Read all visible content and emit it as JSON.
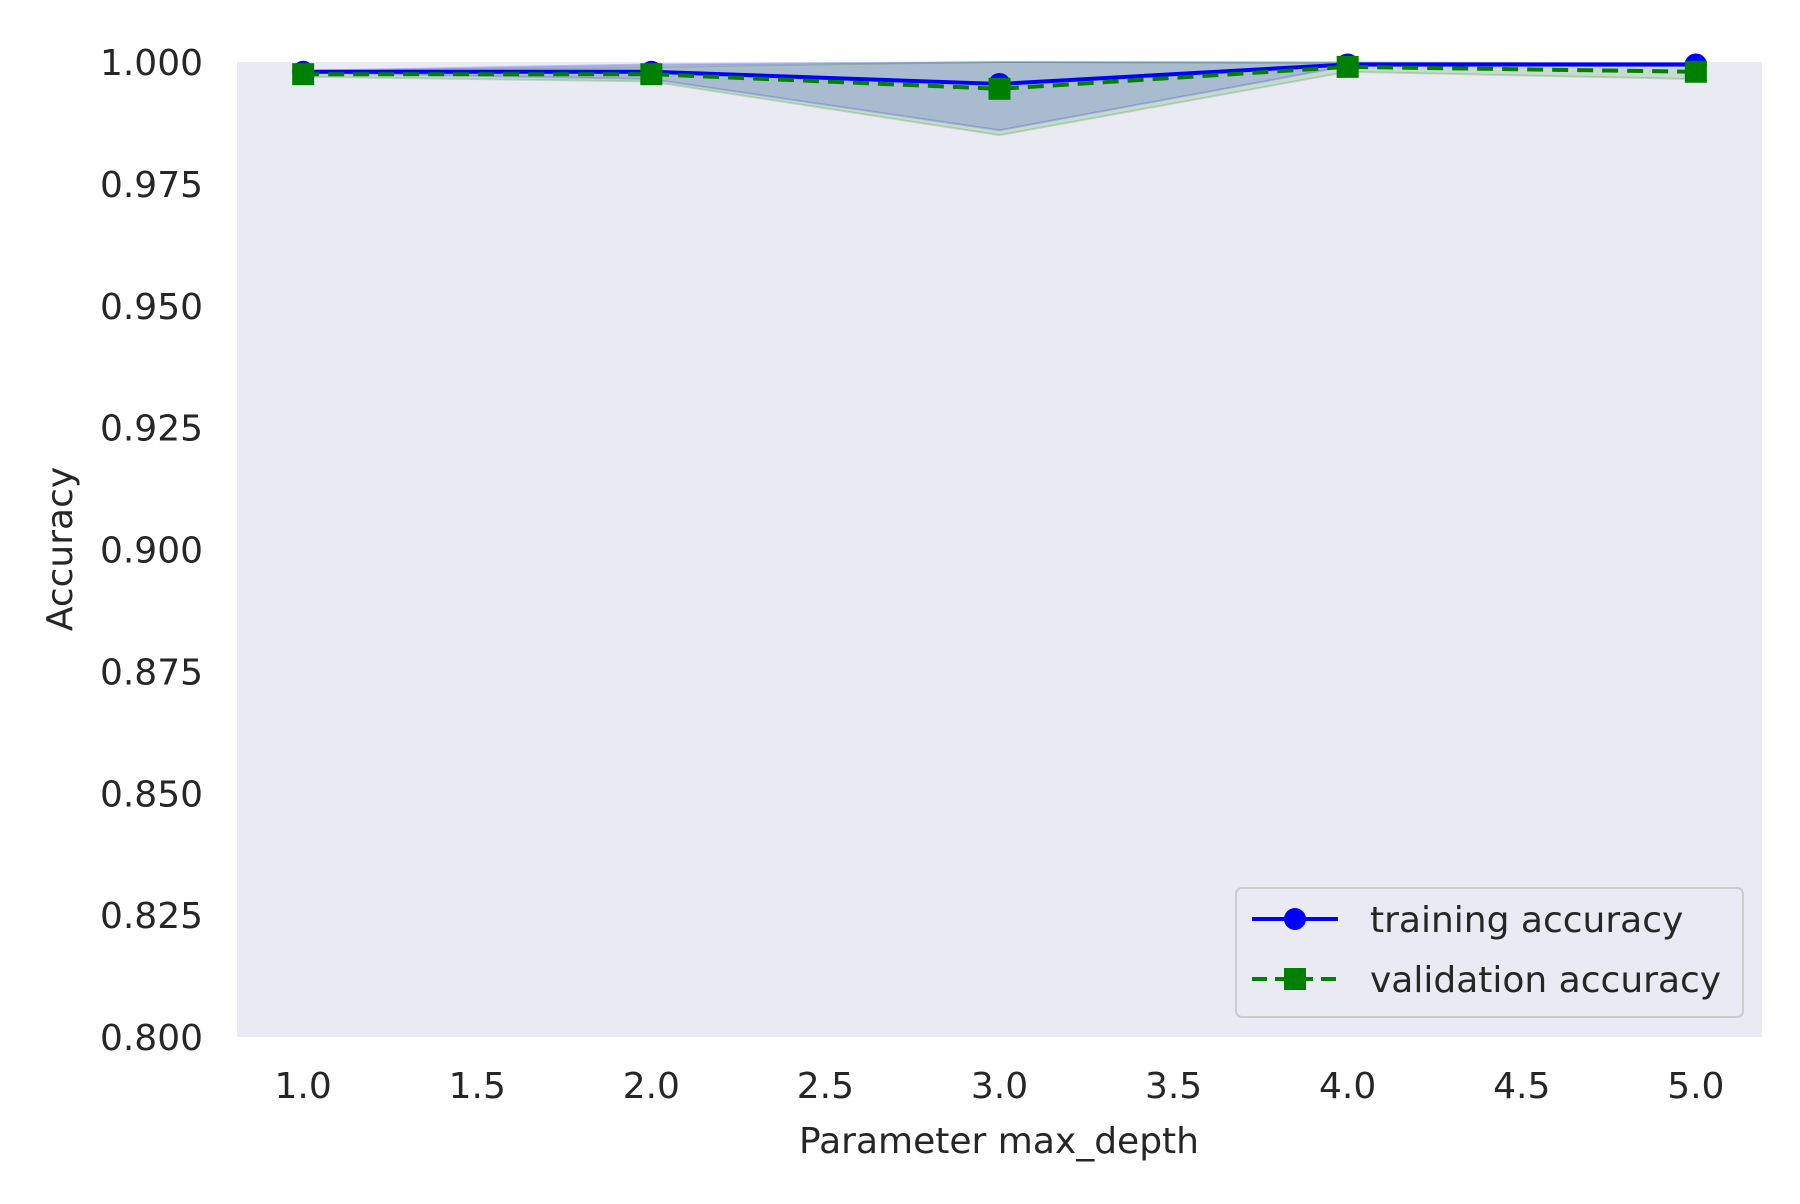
{
  "chart_data": {
    "type": "line",
    "title": "",
    "xlabel": "Parameter max_depth",
    "ylabel": "Accuracy",
    "xlim": [
      0.81,
      5.19
    ],
    "ylim": [
      0.8,
      1.0
    ],
    "x_ticks": [
      "1.0",
      "1.5",
      "2.0",
      "2.5",
      "3.0",
      "3.5",
      "4.0",
      "4.5",
      "5.0"
    ],
    "y_ticks": [
      "0.800",
      "0.825",
      "0.850",
      "0.875",
      "0.900",
      "0.925",
      "0.950",
      "0.975",
      "1.000"
    ],
    "grid": false,
    "background_color": "#eaeaf2",
    "legend_position": "lower-right",
    "x": [
      1,
      2,
      3,
      4,
      5
    ],
    "series": [
      {
        "name": "training accuracy",
        "values": [
          0.998,
          0.998,
          0.9955,
          0.9995,
          0.9995
        ],
        "std_band": [
          [
            0.9978,
            0.9982
          ],
          [
            0.9965,
            0.9995
          ],
          [
            0.986,
            1.0
          ],
          [
            0.9992,
            0.9998
          ],
          [
            0.9992,
            0.9998
          ]
        ],
        "color": "#0000ff",
        "line_style": "solid",
        "marker": "circle"
      },
      {
        "name": "validation accuracy",
        "values": [
          0.9975,
          0.9975,
          0.9945,
          0.999,
          0.998
        ],
        "std_band": [
          [
            0.997,
            0.998
          ],
          [
            0.996,
            0.999
          ],
          [
            0.985,
            1.0
          ],
          [
            0.998,
            1.0
          ],
          [
            0.9965,
            0.9995
          ]
        ],
        "color": "#008000",
        "line_style": "dashed",
        "marker": "square"
      }
    ]
  }
}
